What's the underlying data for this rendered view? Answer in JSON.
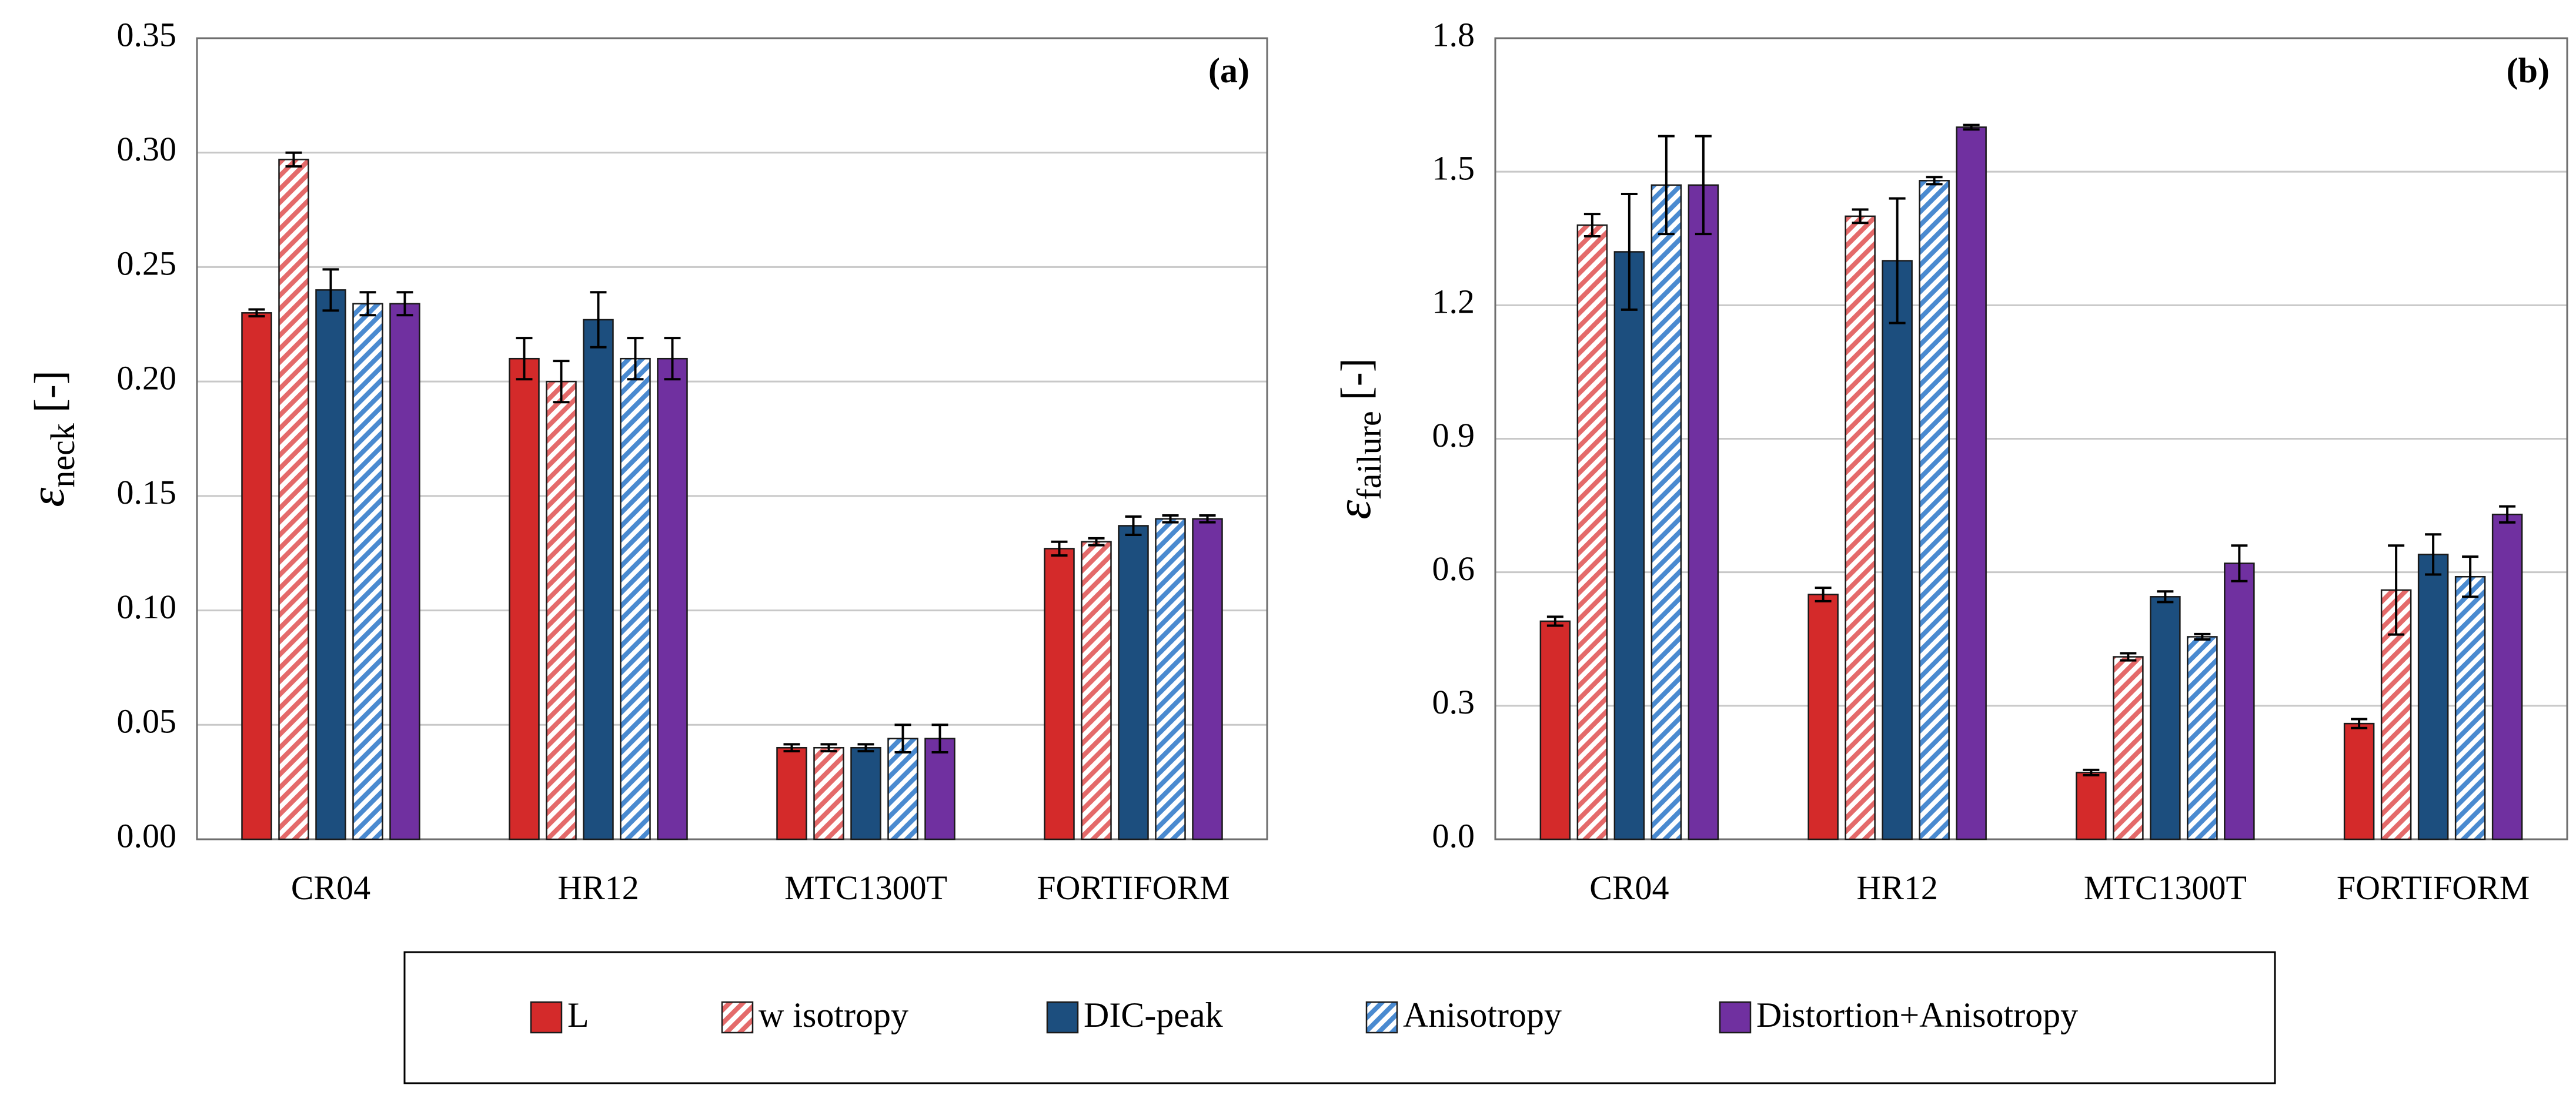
{
  "colors": {
    "L": "#d42a2a",
    "w_isotropy": "#e46a6a",
    "DIC_peak": "#1c4e7e",
    "Anisotropy": "#4a8ad0",
    "Distortion_Anisotropy": "#7030a0",
    "grid": "#c8c8c8"
  },
  "legend": {
    "items": [
      {
        "key": "L",
        "label": "L",
        "pattern": "solid",
        "color": "#d42a2a"
      },
      {
        "key": "w_isotropy",
        "label": "w isotropy",
        "pattern": "hatch",
        "color": "#e46a6a"
      },
      {
        "key": "DIC_peak",
        "label": "DIC-peak",
        "pattern": "solid",
        "color": "#1c4e7e"
      },
      {
        "key": "Anisotropy",
        "label": "Anisotropy",
        "pattern": "hatch",
        "color": "#4a8ad0"
      },
      {
        "key": "Distortion_Anisotropy",
        "label": "Distortion+Anisotropy",
        "pattern": "solid",
        "color": "#7030a0"
      }
    ]
  },
  "chart_data": [
    {
      "type": "bar",
      "panel_label": "(a)",
      "ylabel_symbol": "ε",
      "ylabel_sub": "neck",
      "ylabel_unit": " [-]",
      "ylim": [
        0,
        0.35
      ],
      "yticks": [
        "0.00",
        "0.05",
        "0.10",
        "0.15",
        "0.20",
        "0.25",
        "0.30",
        "0.35"
      ],
      "ytick_values": [
        0,
        0.05,
        0.1,
        0.15,
        0.2,
        0.25,
        0.3,
        0.35
      ],
      "categories": [
        "CR04",
        "HR12",
        "MTC1300T",
        "FORTIFORM"
      ],
      "grid": true,
      "series": [
        {
          "name": "L",
          "values": [
            0.23,
            0.21,
            0.04,
            0.127
          ],
          "errors": [
            0.0015,
            0.009,
            0.0015,
            0.003
          ]
        },
        {
          "name": "w isotropy",
          "values": [
            0.297,
            0.2,
            0.04,
            0.13
          ],
          "errors": [
            0.003,
            0.009,
            0.0015,
            0.0015
          ]
        },
        {
          "name": "DIC-peak",
          "values": [
            0.24,
            0.227,
            0.04,
            0.137
          ],
          "errors": [
            0.009,
            0.012,
            0.0015,
            0.004
          ]
        },
        {
          "name": "Anisotropy",
          "values": [
            0.234,
            0.21,
            0.044,
            0.14
          ],
          "errors": [
            0.005,
            0.009,
            0.006,
            0.0015
          ]
        },
        {
          "name": "Distortion+Anisotropy",
          "values": [
            0.234,
            0.21,
            0.044,
            0.14
          ],
          "errors": [
            0.005,
            0.009,
            0.006,
            0.0015
          ]
        }
      ]
    },
    {
      "type": "bar",
      "panel_label": "(b)",
      "ylabel_symbol": "ε",
      "ylabel_sub": "failure",
      "ylabel_unit": " [-]",
      "ylim": [
        0,
        1.8
      ],
      "yticks": [
        "0.0",
        "0.3",
        "0.6",
        "0.9",
        "1.2",
        "1.5",
        "1.8"
      ],
      "ytick_values": [
        0,
        0.3,
        0.6,
        0.9,
        1.2,
        1.5,
        1.8
      ],
      "categories": [
        "CR04",
        "HR12",
        "MTC1300T",
        "FORTIFORM"
      ],
      "grid": true,
      "series": [
        {
          "name": "L",
          "values": [
            0.49,
            0.55,
            0.15,
            0.26
          ],
          "errors": [
            0.01,
            0.015,
            0.006,
            0.01
          ]
        },
        {
          "name": "w isotropy",
          "values": [
            1.38,
            1.4,
            0.41,
            0.56
          ],
          "errors": [
            0.025,
            0.015,
            0.008,
            0.1
          ]
        },
        {
          "name": "DIC-peak",
          "values": [
            1.32,
            1.3,
            0.545,
            0.64
          ],
          "errors": [
            0.13,
            0.14,
            0.012,
            0.045
          ]
        },
        {
          "name": "Anisotropy",
          "values": [
            1.47,
            1.48,
            0.455,
            0.59
          ],
          "errors": [
            0.11,
            0.008,
            0.006,
            0.045
          ]
        },
        {
          "name": "Distortion+Anisotropy",
          "values": [
            1.47,
            1.6,
            0.62,
            0.73
          ],
          "errors": [
            0.11,
            0.005,
            0.04,
            0.018
          ]
        }
      ]
    }
  ]
}
